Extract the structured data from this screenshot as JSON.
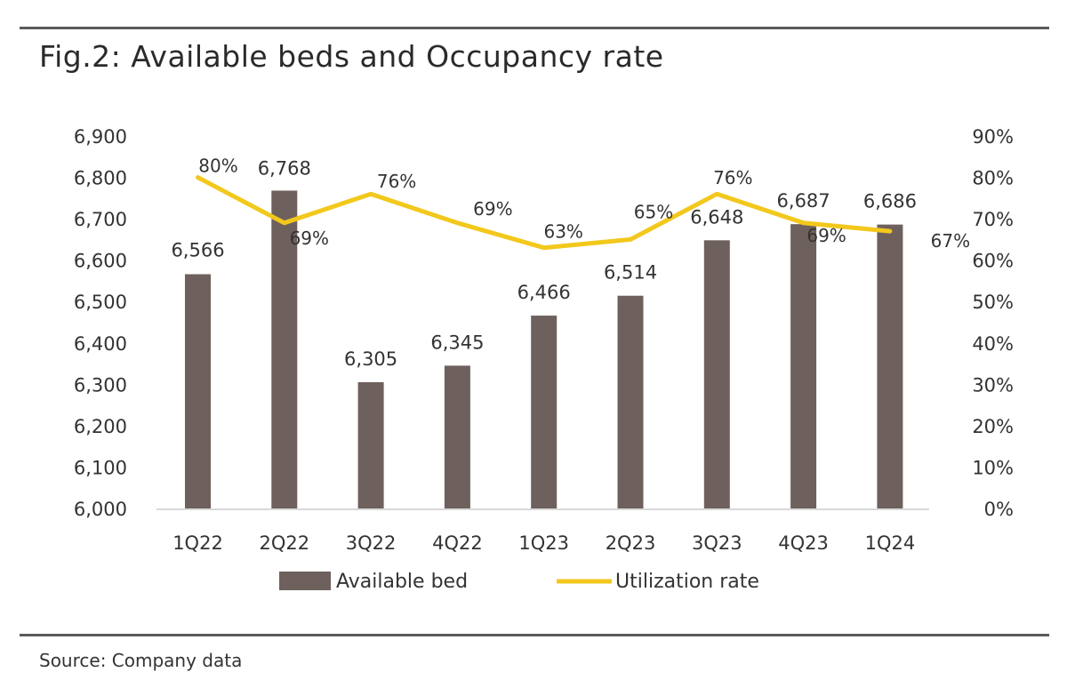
{
  "title": "Fig.2: Available beds and Occupancy rate",
  "source": "Source: Company data",
  "colors": {
    "bar": "#6e605d",
    "line": "#f2c81c",
    "text": "#333333",
    "axis": "#cccccc",
    "rule": "#5b5b5b"
  },
  "chart_data": {
    "type": "bar",
    "categories": [
      "1Q22",
      "2Q22",
      "3Q22",
      "4Q22",
      "1Q23",
      "2Q23",
      "3Q23",
      "4Q23",
      "1Q24"
    ],
    "series": [
      {
        "name": "Available bed",
        "type": "bar",
        "axis": "left",
        "values": [
          6566,
          6768,
          6305,
          6345,
          6466,
          6514,
          6648,
          6687,
          6686
        ],
        "labels": [
          "6,566",
          "6,768",
          "6,305",
          "6,345",
          "6,466",
          "6,514",
          "6,648",
          "6,687",
          "6,686"
        ]
      },
      {
        "name": "Utilization rate",
        "type": "line",
        "axis": "right",
        "values": [
          80,
          69,
          76,
          69,
          63,
          65,
          76,
          69,
          67
        ],
        "labels": [
          "80%",
          "69%",
          "76%",
          "69%",
          "63%",
          "65%",
          "76%",
          "69%",
          "67%"
        ]
      }
    ],
    "y_left": {
      "min": 6000,
      "max": 6900,
      "ticks": [
        "6,000",
        "6,100",
        "6,200",
        "6,300",
        "6,400",
        "6,500",
        "6,600",
        "6,700",
        "6,800",
        "6,900"
      ]
    },
    "y_right": {
      "min": 0,
      "max": 90,
      "ticks": [
        "0%",
        "10%",
        "20%",
        "30%",
        "40%",
        "50%",
        "60%",
        "70%",
        "80%",
        "90%"
      ]
    },
    "legend": {
      "position": "bottom",
      "items": [
        "Available bed",
        "Utilization rate"
      ]
    },
    "grid": false
  }
}
